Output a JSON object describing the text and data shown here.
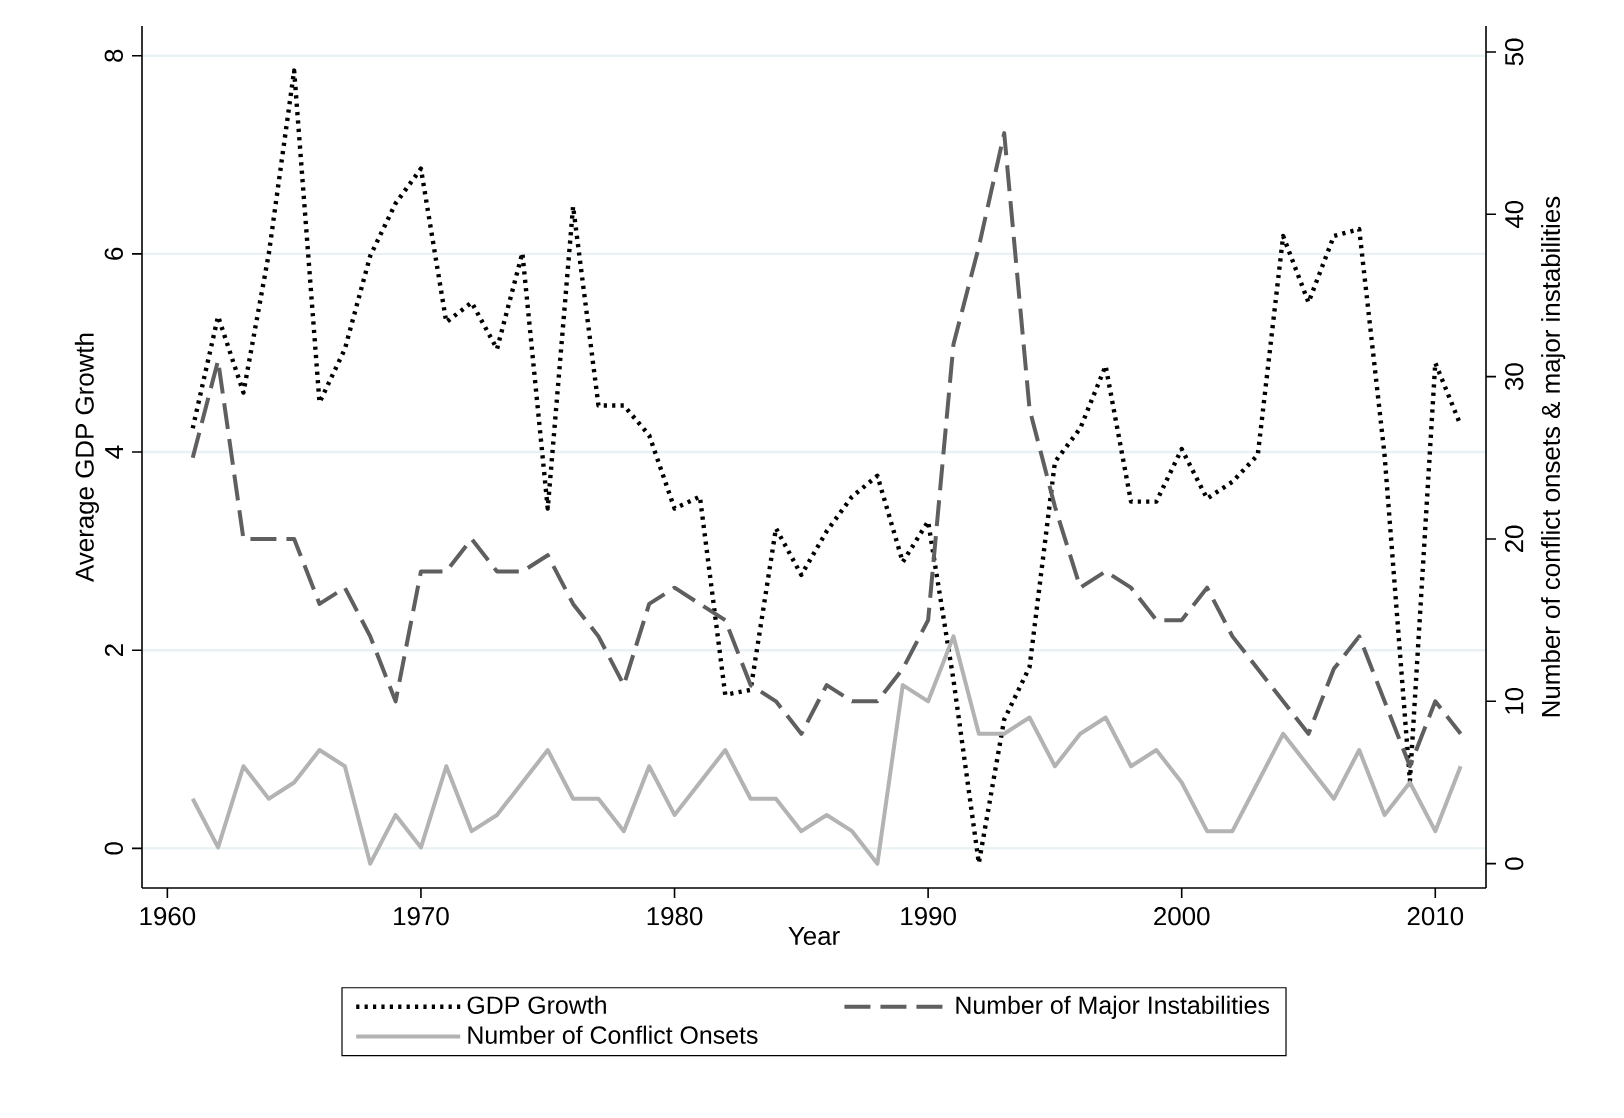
{
  "chart_data": {
    "type": "line",
    "xlabel": "Year",
    "ylabel": "Average GDP Growth",
    "y2label": "Number of conflict onsets & major instabilities",
    "x": [
      1961,
      1962,
      1963,
      1964,
      1965,
      1966,
      1967,
      1968,
      1969,
      1970,
      1971,
      1972,
      1973,
      1974,
      1975,
      1976,
      1977,
      1978,
      1979,
      1980,
      1981,
      1982,
      1983,
      1984,
      1985,
      1986,
      1987,
      1988,
      1989,
      1990,
      1991,
      1992,
      1993,
      1994,
      1995,
      1996,
      1997,
      1998,
      1999,
      2000,
      2001,
      2002,
      2003,
      2004,
      2005,
      2006,
      2007,
      2008,
      2009,
      2010,
      2011
    ],
    "xlim": [
      1959,
      2012
    ],
    "xticks": [
      1960,
      1970,
      1980,
      1990,
      2000,
      2010
    ],
    "ylim": [
      -0.4,
      8.3
    ],
    "yticks": [
      0,
      2,
      4,
      6,
      8
    ],
    "y2lim": [
      -1.5,
      51.6
    ],
    "y2ticks": [
      0,
      10,
      20,
      30,
      40,
      50
    ],
    "grid": "y",
    "legend": "bottom",
    "series": [
      {
        "name": "GDP Growth",
        "color": "#000000",
        "line_style": "dotted",
        "axis": "y",
        "values": [
          4.24,
          5.37,
          4.6,
          6.0,
          7.85,
          4.5,
          5.04,
          5.98,
          6.51,
          6.86,
          5.31,
          5.51,
          5.04,
          6.01,
          3.43,
          6.48,
          4.47,
          4.47,
          4.17,
          3.43,
          3.55,
          1.55,
          1.6,
          3.23,
          2.76,
          3.2,
          3.55,
          3.76,
          2.89,
          3.3,
          1.7,
          -0.15,
          1.3,
          1.83,
          3.9,
          4.24,
          4.87,
          3.5,
          3.5,
          4.03,
          3.53,
          3.7,
          3.97,
          6.18,
          5.51,
          6.18,
          6.25,
          3.97,
          0.68,
          4.9,
          4.27
        ]
      },
      {
        "name": "Number of Major Instabilities",
        "color": "#5f5f5f",
        "line_style": "dashed",
        "axis": "y2",
        "values": [
          25,
          31,
          20,
          20,
          20,
          16,
          17,
          14,
          10,
          18,
          18,
          20,
          18,
          18,
          19,
          16,
          14,
          11,
          16,
          17,
          16,
          15,
          11,
          10,
          8,
          11,
          10,
          10,
          12,
          15,
          32,
          38,
          45,
          28,
          22,
          17,
          18,
          17,
          15,
          15,
          17,
          14,
          12,
          10,
          8,
          12,
          14,
          10,
          6,
          10,
          8
        ]
      },
      {
        "name": "Number of Conflict Onsets",
        "color": "#b3b3b3",
        "line_style": "solid",
        "axis": "y2",
        "values": [
          4,
          1,
          6,
          4,
          5,
          7,
          6,
          0,
          3,
          1,
          6,
          2,
          3,
          5,
          7,
          4,
          4,
          2,
          6,
          3,
          5,
          7,
          4,
          4,
          2,
          3,
          2,
          0,
          11,
          10,
          14,
          8,
          8,
          9,
          6,
          8,
          9,
          6,
          7,
          5,
          2,
          2,
          5,
          8,
          6,
          4,
          7,
          3,
          5,
          2,
          6
        ]
      }
    ]
  }
}
